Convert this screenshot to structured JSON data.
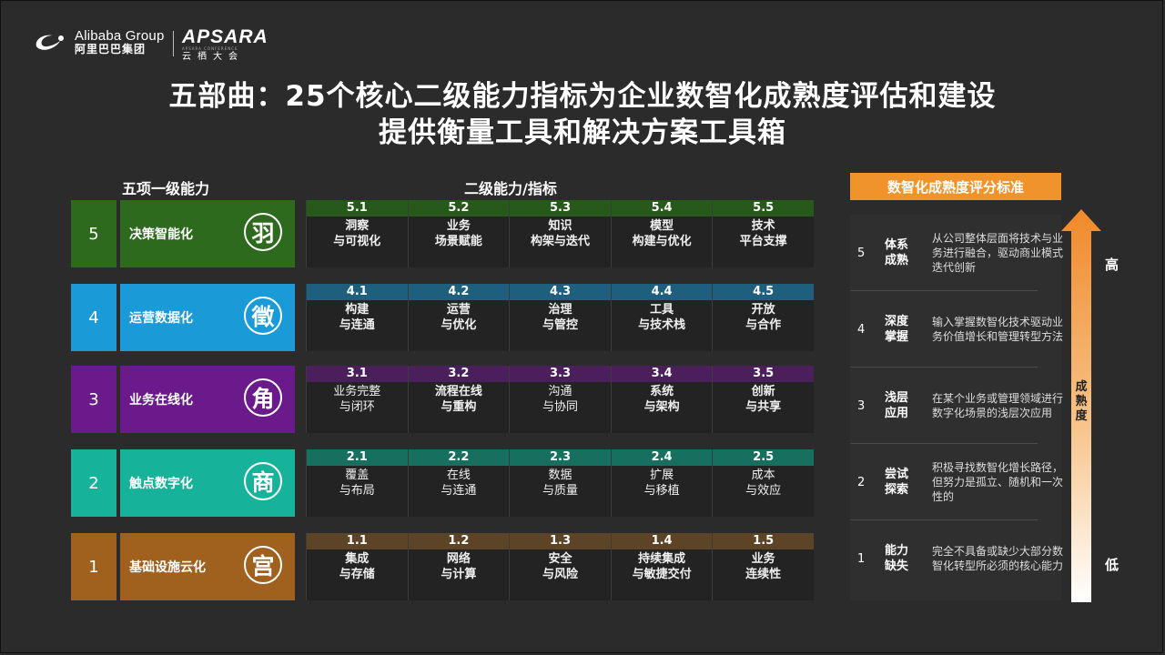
{
  "header": {
    "alibaba_en": "Alibaba Group",
    "alibaba_cn": "阿里巴巴集团",
    "apsara_en": "APSARA",
    "apsara_sub": "APSARA CONFERENCE",
    "apsara_cn": "云栖大会"
  },
  "title": {
    "line1": "五部曲：25个核心二级能力指标为企业数智化成熟度评估和建设",
    "line2": "提供衡量工具和解决方案工具箱"
  },
  "columns": {
    "left": "五项一级能力",
    "middle": "二级能力/指标"
  },
  "levels": [
    {
      "num": "5",
      "name": "决策智能化",
      "glyph": "羽",
      "color": "#2d6a1e",
      "band": "#27591a",
      "cells": [
        {
          "code": "5.1",
          "l1": "洞察",
          "l2": "与可视化"
        },
        {
          "code": "5.2",
          "l1": "业务",
          "l2": "场景赋能"
        },
        {
          "code": "5.3",
          "l1": "知识",
          "l2": "构架与迭代"
        },
        {
          "code": "5.4",
          "l1": "模型",
          "l2": "构建与优化"
        },
        {
          "code": "5.5",
          "l1": "技术",
          "l2": "平台支撑"
        }
      ]
    },
    {
      "num": "4",
      "name": "运营数据化",
      "glyph": "徵",
      "color": "#1a9ad6",
      "band": "#1d5f7c",
      "cells": [
        {
          "code": "4.1",
          "l1": "构建",
          "l2": "与连通"
        },
        {
          "code": "4.2",
          "l1": "运营",
          "l2": "与优化"
        },
        {
          "code": "4.3",
          "l1": "治理",
          "l2": "与管控"
        },
        {
          "code": "4.4",
          "l1": "工具",
          "l2": "与技术栈"
        },
        {
          "code": "4.5",
          "l1": "开放",
          "l2": "与合作"
        }
      ]
    },
    {
      "num": "3",
      "name": "业务在线化",
      "glyph": "角",
      "color": "#6a1a8a",
      "band": "#4a1f5c",
      "cells": [
        {
          "code": "3.1",
          "l1": "业务完整",
          "l2": "与闭环"
        },
        {
          "code": "3.2",
          "l1": "流程在线",
          "l2": "与重构"
        },
        {
          "code": "3.3",
          "l1": "沟通",
          "l2": "与协同"
        },
        {
          "code": "3.4",
          "l1": "系统",
          "l2": "与架构"
        },
        {
          "code": "3.5",
          "l1": "创新",
          "l2": "与共享"
        }
      ]
    },
    {
      "num": "2",
      "name": "触点数字化",
      "glyph": "商",
      "color": "#16b39a",
      "band": "#17705f",
      "cells": [
        {
          "code": "2.1",
          "l1": "覆盖",
          "l2": "与布局"
        },
        {
          "code": "2.2",
          "l1": "在线",
          "l2": "与连通"
        },
        {
          "code": "2.3",
          "l1": "数据",
          "l2": "与质量"
        },
        {
          "code": "2.4",
          "l1": "扩展",
          "l2": "与移植"
        },
        {
          "code": "2.5",
          "l1": "成本",
          "l2": "与效应"
        }
      ]
    },
    {
      "num": "1",
      "name": "基础设施云化",
      "glyph": "宫",
      "color": "#a0601e",
      "band": "#5e4426",
      "cells": [
        {
          "code": "1.1",
          "l1": "集成",
          "l2": "与存储"
        },
        {
          "code": "1.2",
          "l1": "网络",
          "l2": "与计算"
        },
        {
          "code": "1.3",
          "l1": "安全",
          "l2": "与风险"
        },
        {
          "code": "1.4",
          "l1": "持续集成",
          "l2": "与敏捷交付"
        },
        {
          "code": "1.5",
          "l1": "业务",
          "l2": "连续性"
        }
      ]
    }
  ],
  "scoring": {
    "title": "数智化成熟度评分标准",
    "rows": [
      {
        "num": "5",
        "k1": "体系",
        "k2": "成熟",
        "desc": "从公司整体层面将技术与业务进行融合，驱动商业模式迭代创新"
      },
      {
        "num": "4",
        "k1": "深度",
        "k2": "掌握",
        "desc": "输入掌握数智化技术驱动业务价值增长和管理转型方法"
      },
      {
        "num": "3",
        "k1": "浅层",
        "k2": "应用",
        "desc": "在某个业务或管理领域进行数字化场景的浅层次应用"
      },
      {
        "num": "2",
        "k1": "尝试",
        "k2": "探索",
        "desc": "积极寻找数智化增长路径，但努力是孤立、随机和一次性的"
      },
      {
        "num": "1",
        "k1": "能力",
        "k2": "缺失",
        "desc": "完全不具备或缺少大部分数智化转型所必须的核心能力"
      }
    ],
    "axis_label": "成熟度",
    "high": "高",
    "low": "低"
  }
}
